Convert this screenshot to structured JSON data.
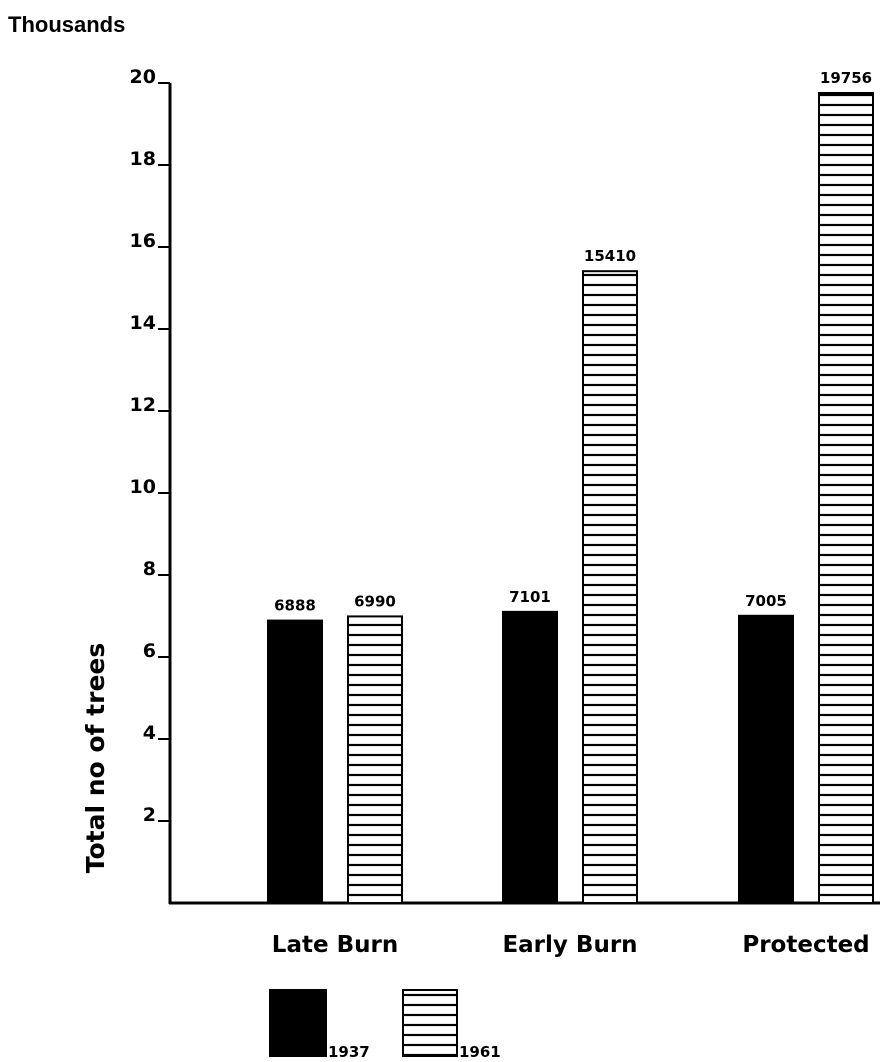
{
  "chart_data": {
    "type": "bar",
    "units_label": "Thousands",
    "ylabel": "Total no of trees",
    "xlabel": "",
    "ylim": [
      0,
      20
    ],
    "yticks": [
      "2",
      "4",
      "6",
      "8",
      "10",
      "12",
      "14",
      "16",
      "18",
      "20"
    ],
    "categories": [
      "Late Burn",
      "Early Burn",
      "Protected"
    ],
    "series": [
      {
        "name": "1937",
        "style": "solid",
        "color": "#000000",
        "values": [
          6888,
          7101,
          7005
        ],
        "labels": [
          "6888",
          "7101",
          "7005"
        ]
      },
      {
        "name": "1961",
        "style": "horizontal-hatch",
        "color": "#000000",
        "values": [
          6990,
          15410,
          19756
        ],
        "labels": [
          "6990",
          "15410",
          "19756"
        ]
      }
    ],
    "legend_position": "bottom",
    "grid": false
  }
}
